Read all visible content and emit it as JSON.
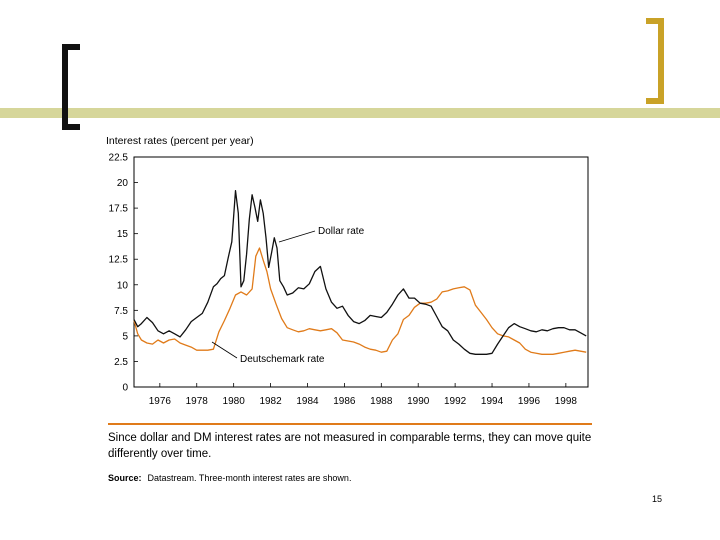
{
  "slide": {
    "page_number": "15"
  },
  "colors": {
    "dollar": "#111111",
    "dm": "#e07b1a",
    "frame": "#000000",
    "accent_bar": "#d6d69a",
    "bracket_left": "#111111",
    "bracket_right": "#c9a227"
  },
  "chart_data": {
    "type": "line",
    "title": "Interest rates (percent per year)",
    "xlabel": "",
    "ylabel": "Interest rates (percent per year)",
    "xlim": [
      1974.6,
      1999.2
    ],
    "ylim": [
      0,
      22.5
    ],
    "yticks": [
      "0",
      "2.5",
      "5",
      "7.5",
      "10",
      "12.5",
      "15",
      "17.5",
      "20",
      "22.5"
    ],
    "xticks": [
      "1976",
      "1978",
      "1980",
      "1982",
      "1984",
      "1986",
      "1988",
      "1990",
      "1992",
      "1994",
      "1996",
      "1998"
    ],
    "annotations": [
      "Dollar rate",
      "Deutschemark rate"
    ],
    "series": [
      {
        "name": "Dollar rate",
        "x": [
          1974.6,
          1974.8,
          1975.0,
          1975.3,
          1975.6,
          1975.9,
          1976.2,
          1976.5,
          1976.8,
          1977.1,
          1977.4,
          1977.7,
          1978.0,
          1978.3,
          1978.6,
          1978.9,
          1979.1,
          1979.3,
          1979.5,
          1979.7,
          1979.9,
          1980.1,
          1980.25,
          1980.4,
          1980.55,
          1980.7,
          1980.85,
          1981.0,
          1981.15,
          1981.3,
          1981.45,
          1981.6,
          1981.75,
          1981.9,
          1982.05,
          1982.2,
          1982.35,
          1982.5,
          1982.7,
          1982.9,
          1983.2,
          1983.5,
          1983.8,
          1984.1,
          1984.4,
          1984.7,
          1985.0,
          1985.3,
          1985.6,
          1985.9,
          1986.2,
          1986.5,
          1986.8,
          1987.1,
          1987.4,
          1987.7,
          1988.0,
          1988.3,
          1988.6,
          1988.9,
          1989.2,
          1989.5,
          1989.8,
          1990.1,
          1990.4,
          1990.7,
          1991.0,
          1991.3,
          1991.6,
          1991.9,
          1992.2,
          1992.5,
          1992.8,
          1993.1,
          1993.4,
          1993.7,
          1994.0,
          1994.3,
          1994.6,
          1994.9,
          1995.2,
          1995.5,
          1995.8,
          1996.1,
          1996.4,
          1996.7,
          1997.0,
          1997.3,
          1997.6,
          1997.9,
          1998.2,
          1998.5,
          1998.8,
          1999.1
        ],
        "values": [
          6.6,
          5.9,
          6.2,
          6.8,
          6.3,
          5.5,
          5.2,
          5.5,
          5.2,
          4.9,
          5.6,
          6.4,
          6.8,
          7.2,
          8.3,
          9.8,
          10.1,
          10.6,
          10.9,
          12.6,
          14.2,
          19.2,
          17.0,
          9.8,
          10.4,
          13.0,
          16.4,
          18.8,
          17.6,
          16.2,
          18.3,
          17.0,
          14.6,
          11.7,
          13.1,
          14.6,
          13.6,
          10.4,
          9.8,
          9.0,
          9.2,
          9.7,
          9.6,
          10.1,
          11.3,
          11.8,
          9.6,
          8.3,
          7.7,
          7.9,
          7.0,
          6.4,
          6.2,
          6.5,
          7.0,
          6.9,
          6.8,
          7.3,
          8.1,
          9.0,
          9.6,
          8.7,
          8.7,
          8.2,
          8.1,
          7.9,
          6.9,
          5.9,
          5.5,
          4.6,
          4.2,
          3.7,
          3.3,
          3.2,
          3.2,
          3.2,
          3.3,
          4.2,
          5.0,
          5.8,
          6.2,
          5.9,
          5.7,
          5.5,
          5.4,
          5.6,
          5.5,
          5.7,
          5.8,
          5.8,
          5.6,
          5.6,
          5.3,
          5.0
        ]
      },
      {
        "name": "Deutschemark rate",
        "x": [
          1974.6,
          1974.8,
          1975.0,
          1975.3,
          1975.6,
          1975.9,
          1976.2,
          1976.5,
          1976.8,
          1977.1,
          1977.4,
          1977.7,
          1978.0,
          1978.3,
          1978.6,
          1978.9,
          1979.2,
          1979.5,
          1979.8,
          1980.1,
          1980.4,
          1980.7,
          1981.0,
          1981.2,
          1981.4,
          1981.6,
          1981.8,
          1982.0,
          1982.3,
          1982.6,
          1982.9,
          1983.2,
          1983.5,
          1983.8,
          1984.1,
          1984.4,
          1984.7,
          1985.0,
          1985.3,
          1985.6,
          1985.9,
          1986.2,
          1986.5,
          1986.8,
          1987.1,
          1987.4,
          1987.7,
          1988.0,
          1988.3,
          1988.6,
          1988.9,
          1989.2,
          1989.5,
          1989.8,
          1990.1,
          1990.4,
          1990.7,
          1991.0,
          1991.3,
          1991.6,
          1991.9,
          1992.2,
          1992.5,
          1992.8,
          1993.1,
          1993.4,
          1993.7,
          1994.0,
          1994.3,
          1994.6,
          1994.9,
          1995.2,
          1995.5,
          1995.8,
          1996.1,
          1996.4,
          1996.7,
          1997.0,
          1997.3,
          1997.6,
          1997.9,
          1998.2,
          1998.5,
          1998.8,
          1999.1
        ],
        "values": [
          6.5,
          5.2,
          4.6,
          4.3,
          4.2,
          4.6,
          4.3,
          4.6,
          4.7,
          4.3,
          4.1,
          3.9,
          3.6,
          3.6,
          3.6,
          3.7,
          5.4,
          6.5,
          7.7,
          9.0,
          9.3,
          9.0,
          9.6,
          12.8,
          13.6,
          12.4,
          11.3,
          9.6,
          8.1,
          6.7,
          5.8,
          5.6,
          5.4,
          5.5,
          5.7,
          5.6,
          5.5,
          5.6,
          5.7,
          5.3,
          4.6,
          4.5,
          4.4,
          4.2,
          3.9,
          3.7,
          3.6,
          3.4,
          3.5,
          4.6,
          5.2,
          6.6,
          7.0,
          7.8,
          8.2,
          8.2,
          8.3,
          8.6,
          9.3,
          9.4,
          9.6,
          9.7,
          9.8,
          9.5,
          8.0,
          7.3,
          6.6,
          5.8,
          5.2,
          5.0,
          4.9,
          4.6,
          4.3,
          3.7,
          3.4,
          3.3,
          3.2,
          3.2,
          3.2,
          3.3,
          3.4,
          3.5,
          3.6,
          3.5,
          3.4
        ]
      }
    ]
  },
  "caption": "Since dollar and DM interest rates are not measured in comparable terms, they can move quite differently over time.",
  "source": {
    "label": "Source:",
    "text": "Datastream. Three-month interest rates are shown."
  }
}
